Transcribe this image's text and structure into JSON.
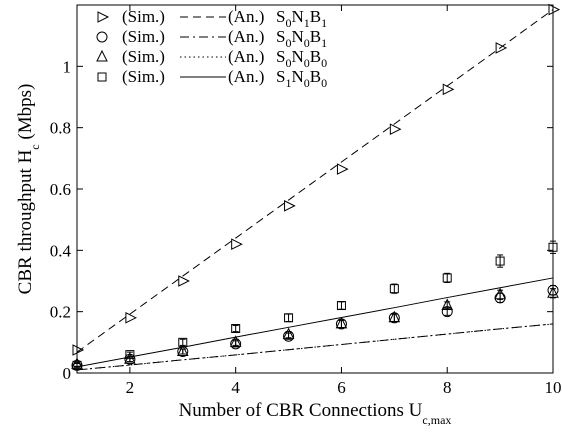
{
  "chart_data": {
    "type": "line",
    "xlabel": "Number of CBR Connections U",
    "xlabel_sub": "c,max",
    "ylabel": "CBR throughput H",
    "ylabel_sub": "c",
    "ylabel_unit": "(Mbps)",
    "xlim": [
      1,
      10
    ],
    "ylim": [
      0,
      1.2
    ],
    "x_ticks": [
      2,
      4,
      6,
      8,
      10
    ],
    "y_ticks": [
      0,
      0.2,
      0.4,
      0.6,
      0.8,
      1
    ],
    "grid": false,
    "legend_position": "top-left",
    "sim_label": "(Sim.)",
    "an_label": "(An.)",
    "series": [
      {
        "name_parts": [
          "S",
          "0",
          "N",
          "1",
          "B",
          "1"
        ],
        "marker": "triangle-right",
        "line_style": "dashed",
        "x": [
          1,
          2,
          3,
          4,
          5,
          6,
          7,
          8,
          9,
          10
        ],
        "sim": [
          0.075,
          0.18,
          0.3,
          0.42,
          0.545,
          0.665,
          0.795,
          0.925,
          1.06,
          1.185
        ],
        "sim_err": [
          0,
          0,
          0,
          0,
          0,
          0,
          0,
          0,
          0,
          0
        ],
        "analytical": [
          0.068,
          0.192,
          0.316,
          0.44,
          0.564,
          0.688,
          0.812,
          0.936,
          1.06,
          1.185
        ]
      },
      {
        "name_parts": [
          "S",
          "0",
          "N",
          "0",
          "B",
          "1"
        ],
        "marker": "circle",
        "line_style": "dashdot",
        "x": [
          1,
          2,
          3,
          4,
          5,
          6,
          7,
          8,
          9,
          10
        ],
        "sim": [
          0.025,
          0.045,
          0.07,
          0.095,
          0.12,
          0.16,
          0.18,
          0.2,
          0.245,
          0.27
        ],
        "sim_err": [
          0.006,
          0.008,
          0.008,
          0.01,
          0.01,
          0.012,
          0.012,
          0.012,
          0.015,
          0.015
        ],
        "analytical": [
          0.01,
          0.026,
          0.043,
          0.059,
          0.076,
          0.093,
          0.11,
          0.127,
          0.144,
          0.16
        ]
      },
      {
        "name_parts": [
          "S",
          "0",
          "N",
          "0",
          "B",
          "0"
        ],
        "marker": "triangle-up",
        "line_style": "dotted",
        "x": [
          1,
          2,
          3,
          4,
          5,
          6,
          7,
          8,
          9,
          10
        ],
        "sim": [
          0.028,
          0.045,
          0.07,
          0.1,
          0.125,
          0.16,
          0.18,
          0.22,
          0.255,
          0.26
        ],
        "sim_err": [
          0.006,
          0.008,
          0.008,
          0.01,
          0.01,
          0.012,
          0.012,
          0.012,
          0.015,
          0.015
        ],
        "analytical": [
          0.01,
          0.026,
          0.043,
          0.059,
          0.076,
          0.093,
          0.11,
          0.127,
          0.144,
          0.16
        ]
      },
      {
        "name_parts": [
          "S",
          "1",
          "N",
          "0",
          "B",
          "0"
        ],
        "marker": "square",
        "line_style": "solid",
        "x": [
          1,
          2,
          3,
          4,
          5,
          6,
          7,
          8,
          9,
          10
        ],
        "sim": [
          0.025,
          0.06,
          0.1,
          0.145,
          0.18,
          0.22,
          0.275,
          0.31,
          0.365,
          0.41
        ],
        "sim_err": [
          0.006,
          0.008,
          0.01,
          0.01,
          0.012,
          0.012,
          0.015,
          0.015,
          0.02,
          0.02
        ],
        "analytical": [
          0.02,
          0.052,
          0.084,
          0.117,
          0.149,
          0.181,
          0.213,
          0.246,
          0.278,
          0.31
        ]
      }
    ]
  }
}
